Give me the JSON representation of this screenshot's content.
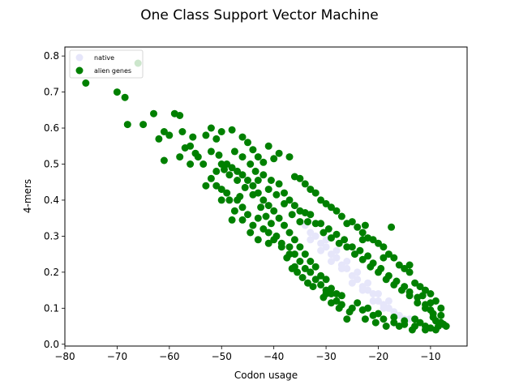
{
  "chart_data": {
    "type": "scatter",
    "title": "One Class Support Vector Machine",
    "xlabel": "Codon usage",
    "ylabel": "4-mers",
    "xlim": [
      -80,
      -3
    ],
    "ylim": [
      -0.005,
      0.825
    ],
    "xticks": [
      -80,
      -70,
      -60,
      -50,
      -40,
      -30,
      -20,
      -10
    ],
    "yticks": [
      0.0,
      0.1,
      0.2,
      0.3,
      0.4,
      0.5,
      0.6,
      0.7,
      0.8
    ],
    "grid": false,
    "legend_position": "top-left",
    "series": [
      {
        "name": "native",
        "color": "#e6e6fa",
        "points": [
          [
            -34,
            0.33
          ],
          [
            -33,
            0.31
          ],
          [
            -32,
            0.3
          ],
          [
            -31,
            0.28
          ],
          [
            -30,
            0.27
          ],
          [
            -29,
            0.25
          ],
          [
            -28,
            0.24
          ],
          [
            -27,
            0.22
          ],
          [
            -26,
            0.21
          ],
          [
            -25,
            0.19
          ],
          [
            -24,
            0.18
          ],
          [
            -23,
            0.16
          ],
          [
            -22,
            0.15
          ],
          [
            -21,
            0.14
          ],
          [
            -20,
            0.12
          ],
          [
            -19,
            0.11
          ],
          [
            -18,
            0.1
          ],
          [
            -17,
            0.09
          ],
          [
            -16,
            0.08
          ],
          [
            -15,
            0.07
          ],
          [
            -14,
            0.07
          ],
          [
            -31,
            0.26
          ],
          [
            -29,
            0.23
          ],
          [
            -27,
            0.21
          ],
          [
            -25,
            0.17
          ],
          [
            -23,
            0.15
          ],
          [
            -21,
            0.12
          ],
          [
            -19,
            0.1
          ],
          [
            -33,
            0.29
          ],
          [
            -30,
            0.29
          ],
          [
            -28,
            0.26
          ],
          [
            -26,
            0.23
          ],
          [
            -24,
            0.2
          ],
          [
            -22,
            0.17
          ],
          [
            -20,
            0.14
          ],
          [
            -18,
            0.12
          ]
        ]
      },
      {
        "name": "alien genes",
        "color": "#008000",
        "points": [
          [
            -76,
            0.725
          ],
          [
            -70,
            0.7
          ],
          [
            -68.5,
            0.685
          ],
          [
            -66,
            0.78
          ],
          [
            -68,
            0.61
          ],
          [
            -65,
            0.61
          ],
          [
            -63,
            0.64
          ],
          [
            -62,
            0.57
          ],
          [
            -61,
            0.59
          ],
          [
            -59,
            0.64
          ],
          [
            -58,
            0.635
          ],
          [
            -57.5,
            0.59
          ],
          [
            -56,
            0.55
          ],
          [
            -55,
            0.53
          ],
          [
            -61,
            0.51
          ],
          [
            -58,
            0.52
          ],
          [
            -56,
            0.5
          ],
          [
            -53,
            0.58
          ],
          [
            -52,
            0.6
          ],
          [
            -51,
            0.57
          ],
          [
            -50,
            0.59
          ],
          [
            -48,
            0.595
          ],
          [
            -46,
            0.575
          ],
          [
            -45,
            0.56
          ],
          [
            -44,
            0.54
          ],
          [
            -43,
            0.52
          ],
          [
            -42,
            0.505
          ],
          [
            -41,
            0.55
          ],
          [
            -40,
            0.515
          ],
          [
            -39,
            0.53
          ],
          [
            -37,
            0.52
          ],
          [
            -36,
            0.465
          ],
          [
            -35,
            0.46
          ],
          [
            -34,
            0.445
          ],
          [
            -33,
            0.43
          ],
          [
            -32,
            0.42
          ],
          [
            -31,
            0.4
          ],
          [
            -30,
            0.39
          ],
          [
            -29,
            0.38
          ],
          [
            -28,
            0.37
          ],
          [
            -27,
            0.355
          ],
          [
            -26,
            0.335
          ],
          [
            -25,
            0.34
          ],
          [
            -24,
            0.325
          ],
          [
            -23,
            0.31
          ],
          [
            -22,
            0.295
          ],
          [
            -21,
            0.29
          ],
          [
            -20,
            0.28
          ],
          [
            -19,
            0.27
          ],
          [
            -18,
            0.25
          ],
          [
            -17,
            0.24
          ],
          [
            -16,
            0.22
          ],
          [
            -15,
            0.21
          ],
          [
            -14,
            0.2
          ],
          [
            -13,
            0.17
          ],
          [
            -12,
            0.16
          ],
          [
            -11,
            0.15
          ],
          [
            -10,
            0.14
          ],
          [
            -9,
            0.12
          ],
          [
            -8,
            0.1
          ],
          [
            -7,
            0.05
          ],
          [
            -8,
            0.08
          ],
          [
            -9,
            0.065
          ],
          [
            -10,
            0.045
          ],
          [
            -11,
            0.05
          ],
          [
            -12,
            0.06
          ],
          [
            -13,
            0.07
          ],
          [
            -15,
            0.065
          ],
          [
            -17,
            0.075
          ],
          [
            -18.5,
            0.05
          ],
          [
            -20,
            0.085
          ],
          [
            -22,
            0.1
          ],
          [
            -24,
            0.115
          ],
          [
            -26,
            0.07
          ],
          [
            -27,
            0.135
          ],
          [
            -28,
            0.14
          ],
          [
            -29,
            0.155
          ],
          [
            -30,
            0.18
          ],
          [
            -31,
            0.19
          ],
          [
            -32,
            0.215
          ],
          [
            -33,
            0.23
          ],
          [
            -34,
            0.25
          ],
          [
            -35,
            0.27
          ],
          [
            -36,
            0.29
          ],
          [
            -37,
            0.31
          ],
          [
            -38,
            0.33
          ],
          [
            -39,
            0.35
          ],
          [
            -40,
            0.37
          ],
          [
            -41,
            0.385
          ],
          [
            -42,
            0.4
          ],
          [
            -43,
            0.42
          ],
          [
            -44,
            0.44
          ],
          [
            -45,
            0.455
          ],
          [
            -46,
            0.47
          ],
          [
            -47,
            0.48
          ],
          [
            -48,
            0.49
          ],
          [
            -49,
            0.5
          ],
          [
            -50,
            0.5
          ],
          [
            -51,
            0.48
          ],
          [
            -52,
            0.46
          ],
          [
            -53,
            0.44
          ],
          [
            -49,
            0.42
          ],
          [
            -47,
            0.4
          ],
          [
            -46,
            0.38
          ],
          [
            -45,
            0.36
          ],
          [
            -43,
            0.35
          ],
          [
            -42,
            0.32
          ],
          [
            -41,
            0.31
          ],
          [
            -40,
            0.29
          ],
          [
            -38.5,
            0.28
          ],
          [
            -37,
            0.27
          ],
          [
            -36,
            0.25
          ],
          [
            -35,
            0.23
          ],
          [
            -34,
            0.21
          ],
          [
            -33,
            0.2
          ],
          [
            -32,
            0.18
          ],
          [
            -31,
            0.165
          ],
          [
            -30,
            0.15
          ],
          [
            -29,
            0.14
          ],
          [
            -28,
            0.12
          ],
          [
            -27,
            0.11
          ],
          [
            -25,
            0.1
          ],
          [
            -23,
            0.095
          ],
          [
            -21,
            0.08
          ],
          [
            -19,
            0.07
          ],
          [
            -17,
            0.06
          ],
          [
            -15,
            0.055
          ],
          [
            -13,
            0.05
          ],
          [
            -11,
            0.04
          ],
          [
            -9,
            0.04
          ],
          [
            -43,
            0.29
          ],
          [
            -44.5,
            0.31
          ],
          [
            -46,
            0.345
          ],
          [
            -47.5,
            0.37
          ],
          [
            -48.5,
            0.4
          ],
          [
            -50,
            0.43
          ],
          [
            -51,
            0.44
          ],
          [
            -39,
            0.445
          ],
          [
            -38,
            0.42
          ],
          [
            -37,
            0.4
          ],
          [
            -36,
            0.385
          ],
          [
            -35,
            0.37
          ],
          [
            -34,
            0.365
          ],
          [
            -33,
            0.36
          ],
          [
            -31,
            0.335
          ],
          [
            -29.5,
            0.32
          ],
          [
            -28,
            0.305
          ],
          [
            -26.5,
            0.29
          ],
          [
            -25,
            0.27
          ],
          [
            -23.5,
            0.26
          ],
          [
            -22,
            0.245
          ],
          [
            -21,
            0.225
          ],
          [
            -19.5,
            0.21
          ],
          [
            -18,
            0.19
          ],
          [
            -16.5,
            0.175
          ],
          [
            -15,
            0.16
          ],
          [
            -14,
            0.145
          ],
          [
            -12.5,
            0.13
          ],
          [
            -11,
            0.11
          ],
          [
            -10,
            0.095
          ],
          [
            -17.5,
            0.325
          ],
          [
            -22.5,
            0.33
          ],
          [
            -23,
            0.29
          ],
          [
            -19,
            0.24
          ],
          [
            -14,
            0.22
          ],
          [
            -11.5,
            0.135
          ],
          [
            -10,
            0.115
          ],
          [
            -8,
            0.06
          ],
          [
            -9.5,
            0.085
          ],
          [
            -36.5,
            0.21
          ],
          [
            -37.5,
            0.24
          ],
          [
            -38.5,
            0.27
          ],
          [
            -39.5,
            0.3
          ],
          [
            -40.5,
            0.335
          ],
          [
            -41.5,
            0.355
          ],
          [
            -42.5,
            0.38
          ],
          [
            -44,
            0.415
          ],
          [
            -45.5,
            0.435
          ],
          [
            -47,
            0.455
          ],
          [
            -48.5,
            0.47
          ],
          [
            -49.5,
            0.485
          ],
          [
            -53.5,
            0.5
          ],
          [
            -54.5,
            0.52
          ],
          [
            -52,
            0.535
          ],
          [
            -50.5,
            0.525
          ],
          [
            -47.5,
            0.535
          ],
          [
            -46,
            0.52
          ],
          [
            -44.5,
            0.5
          ],
          [
            -43.5,
            0.48
          ],
          [
            -42,
            0.47
          ],
          [
            -40.5,
            0.455
          ],
          [
            -39.5,
            0.415
          ],
          [
            -38,
            0.39
          ],
          [
            -36.5,
            0.36
          ],
          [
            -35,
            0.34
          ],
          [
            -33.5,
            0.34
          ],
          [
            -32,
            0.335
          ],
          [
            -30.5,
            0.31
          ],
          [
            -29,
            0.295
          ],
          [
            -27.5,
            0.28
          ],
          [
            -26,
            0.27
          ],
          [
            -24.5,
            0.25
          ],
          [
            -23,
            0.235
          ],
          [
            -21.5,
            0.215
          ],
          [
            -20,
            0.2
          ],
          [
            -18.5,
            0.18
          ],
          [
            -17,
            0.165
          ],
          [
            -15.5,
            0.15
          ],
          [
            -14,
            0.135
          ],
          [
            -12.5,
            0.115
          ],
          [
            -11,
            0.1
          ],
          [
            -9.5,
            0.075
          ],
          [
            -8.5,
            0.05
          ],
          [
            -7.5,
            0.055
          ],
          [
            -13.5,
            0.04
          ],
          [
            -16,
            0.05
          ],
          [
            -20.5,
            0.06
          ],
          [
            -22.5,
            0.07
          ],
          [
            -25.5,
            0.09
          ],
          [
            -27.5,
            0.1
          ],
          [
            -29,
            0.115
          ],
          [
            -30.5,
            0.13
          ],
          [
            -32.5,
            0.16
          ],
          [
            -34.5,
            0.185
          ],
          [
            -36,
            0.215
          ],
          [
            -44,
            0.33
          ],
          [
            -41,
            0.28
          ],
          [
            -37,
            0.25
          ],
          [
            -33.5,
            0.17
          ],
          [
            -30,
            0.14
          ],
          [
            -35.5,
            0.2
          ],
          [
            -48,
            0.345
          ],
          [
            -50,
            0.4
          ],
          [
            -46.5,
            0.41
          ],
          [
            -43,
            0.455
          ],
          [
            -41,
            0.43
          ],
          [
            -55.5,
            0.575
          ],
          [
            -57,
            0.545
          ],
          [
            -60,
            0.58
          ]
        ]
      }
    ]
  }
}
